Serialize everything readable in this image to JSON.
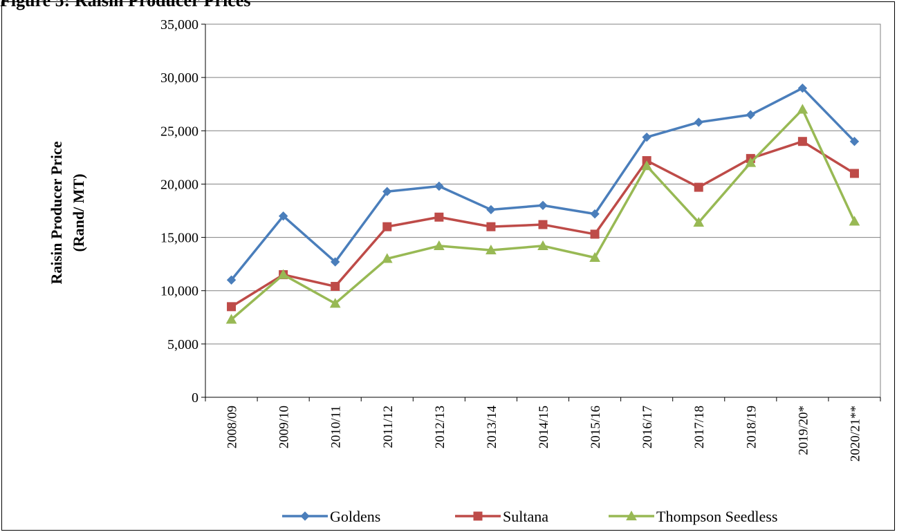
{
  "chart_data": {
    "type": "line",
    "title": "Figure 5: Raisin Producer Prices",
    "xlabel": "",
    "ylabel_line1": "Raisin Producer  Price",
    "ylabel_line2": "(Rand/  MT)",
    "ylim": [
      0,
      35000
    ],
    "yticks": [
      0,
      5000,
      10000,
      15000,
      20000,
      25000,
      30000,
      35000
    ],
    "ytick_labels": [
      "0",
      "5,000",
      "10,000",
      "15,000",
      "20,000",
      "25,000",
      "30,000",
      "35,000"
    ],
    "grid": true,
    "legend": "bottom",
    "categories": [
      "2008/09",
      "2009/10",
      "2010/11",
      "2011/12",
      "2012/13",
      "2013/14",
      "2014/15",
      "2015/16",
      "2016/17",
      "2017/18",
      "2018/19",
      "2019/20*",
      "2020/21**"
    ],
    "series": [
      {
        "name": "Goldens",
        "color": "#4a7ebb",
        "marker": "diamond",
        "values": [
          11000,
          17000,
          12700,
          19300,
          19800,
          17600,
          18000,
          17200,
          24400,
          25800,
          26500,
          29000,
          24000
        ]
      },
      {
        "name": "Sultana",
        "color": "#be4b48",
        "marker": "square",
        "values": [
          8500,
          11500,
          10400,
          16000,
          16900,
          16000,
          16200,
          15300,
          22200,
          19700,
          22400,
          24000,
          21000
        ]
      },
      {
        "name": "Thompson Seedless",
        "color": "#98b954",
        "marker": "triangle",
        "values": [
          7300,
          11500,
          8800,
          13000,
          14200,
          13800,
          14200,
          13100,
          21700,
          16400,
          22000,
          27000,
          16500
        ]
      }
    ]
  }
}
